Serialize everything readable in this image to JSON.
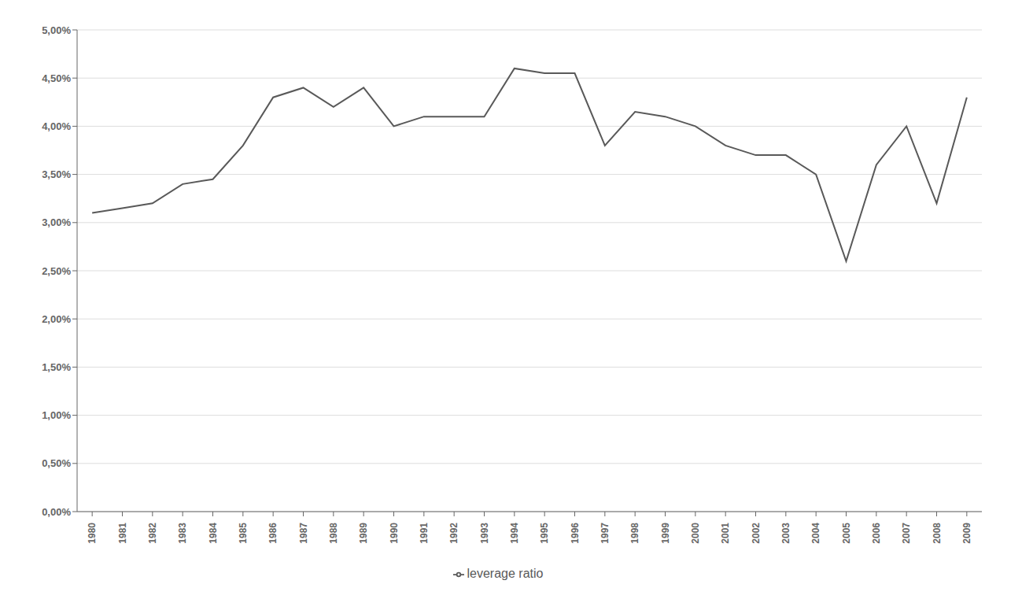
{
  "chart_data": {
    "type": "line",
    "x": [
      1980,
      1981,
      1982,
      1983,
      1984,
      1985,
      1986,
      1987,
      1988,
      1989,
      1990,
      1991,
      1992,
      1993,
      1994,
      1995,
      1996,
      1997,
      1998,
      1999,
      2000,
      2001,
      2002,
      2003,
      2004,
      2005,
      2006,
      2007,
      2008,
      2009
    ],
    "series": [
      {
        "name": "leverage ratio",
        "color": "#595959",
        "values": [
          0.031,
          0.0315,
          0.032,
          0.034,
          0.0345,
          0.038,
          0.043,
          0.044,
          0.042,
          0.044,
          0.04,
          0.041,
          0.041,
          0.041,
          0.046,
          0.0455,
          0.0455,
          0.038,
          0.0415,
          0.041,
          0.04,
          0.038,
          0.037,
          0.037,
          0.035,
          0.026,
          0.036,
          0.04,
          0.032,
          0.043
        ]
      }
    ],
    "xlim": [
      1979.5,
      2009.5
    ],
    "xticks": [
      1980,
      1981,
      1982,
      1983,
      1984,
      1985,
      1986,
      1987,
      1988,
      1989,
      1990,
      1991,
      1992,
      1993,
      1994,
      1995,
      1996,
      1997,
      1998,
      1999,
      2000,
      2001,
      2002,
      2003,
      2004,
      2005,
      2006,
      2007,
      2008,
      2009
    ],
    "ylim": [
      0.0,
      0.05
    ],
    "yticks": [
      {
        "value": 0.0,
        "label": "0,00%"
      },
      {
        "value": 0.005,
        "label": "0,50%"
      },
      {
        "value": 0.01,
        "label": "1,00%"
      },
      {
        "value": 0.015,
        "label": "1,50%"
      },
      {
        "value": 0.02,
        "label": "2,00%"
      },
      {
        "value": 0.025,
        "label": "2,50%"
      },
      {
        "value": 0.03,
        "label": "3,00%"
      },
      {
        "value": 0.035,
        "label": "3,50%"
      },
      {
        "value": 0.04,
        "label": "4,00%"
      },
      {
        "value": 0.045,
        "label": "4,50%"
      },
      {
        "value": 0.05,
        "label": "5,00%"
      }
    ],
    "grid": "y",
    "legend": "bottom"
  }
}
